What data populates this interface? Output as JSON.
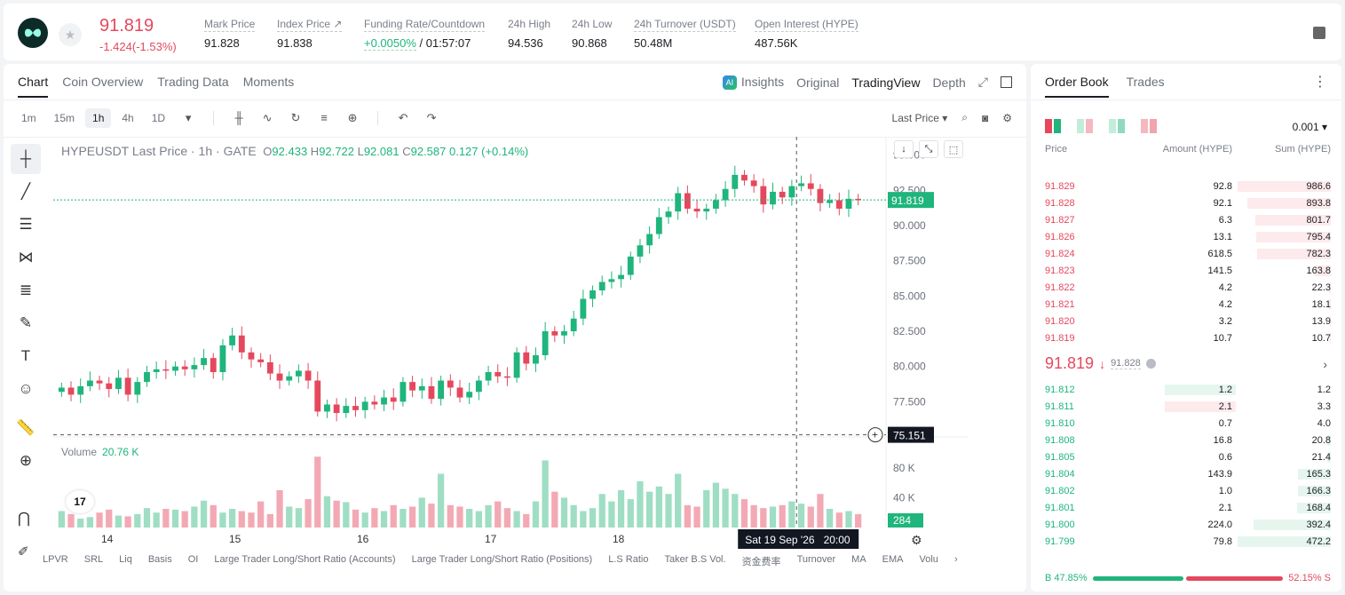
{
  "header": {
    "last_price": "91.819",
    "change": "-1.424(-1.53%)",
    "stats": [
      {
        "label": "Mark Price",
        "value": "91.828"
      },
      {
        "label": "Index Price ↗",
        "value": "91.838"
      },
      {
        "label": "Funding Rate/Countdown",
        "value_green": "+0.0050%",
        "value": " / 01:57:07"
      },
      {
        "label": "24h High",
        "value": "94.536"
      },
      {
        "label": "24h Low",
        "value": "90.868"
      },
      {
        "label": "24h Turnover (USDT)",
        "value": "50.48M"
      },
      {
        "label": "Open Interest (HYPE)",
        "value": "487.56K"
      }
    ]
  },
  "tabs": {
    "main": [
      "Chart",
      "Coin Overview",
      "Trading Data",
      "Moments"
    ],
    "insights": "Insights",
    "views": [
      "Original",
      "TradingView",
      "Depth"
    ],
    "ai_badge": "AI"
  },
  "toolbar": {
    "intervals": [
      "1m",
      "15m",
      "1h",
      "4h",
      "1D"
    ],
    "price_type": "Last Price"
  },
  "chart_info": {
    "title": "HYPEUSDT Last Price · 1h · GATE",
    "o_label": "O",
    "o": "92.433",
    "h_label": "H",
    "h": "92.722",
    "l_label": "L",
    "l": "92.081",
    "c_label": "C",
    "c": "92.587",
    "change": "0.127 (+0.14%)"
  },
  "volume_info": {
    "label": "Volume",
    "value": "20.76 K"
  },
  "tv_logo": "17",
  "chart_data": {
    "type": "candlestick",
    "symbol": "HYPEUSDT",
    "interval": "1h",
    "x_ticks": [
      "14",
      "15",
      "16",
      "17",
      "18",
      "19"
    ],
    "y_ticks": [
      "95.000",
      "92.500",
      "90.000",
      "87.500",
      "85.000",
      "82.500",
      "80.000",
      "77.500"
    ],
    "ylim": [
      75.0,
      95.8
    ],
    "volume_ticks": [
      "80 K",
      "40 K"
    ],
    "last_price_label": "91.819",
    "last_price": 91.819,
    "crosshair_price": "75.151",
    "crosshair_time": "Sat 19 Sep '26   20:00",
    "last_volume_label": "284",
    "close_path": [
      78.5,
      78.0,
      78.6,
      79.0,
      78.8,
      78.4,
      79.2,
      78.0,
      78.9,
      79.6,
      79.8,
      79.7,
      80.0,
      79.8,
      80.1,
      80.6,
      79.6,
      81.5,
      82.2,
      81.0,
      80.5,
      80.3,
      79.5,
      79.0,
      79.3,
      79.7,
      79.0,
      76.8,
      77.3,
      76.7,
      77.2,
      76.9,
      77.5,
      77.3,
      77.8,
      77.5,
      78.9,
      78.3,
      78.6,
      77.7,
      79.0,
      78.5,
      77.8,
      78.2,
      79.0,
      79.6,
      79.3,
      79.2,
      81.0,
      80.2,
      80.8,
      82.5,
      82.2,
      82.5,
      83.4,
      84.8,
      85.4,
      86.0,
      86.2,
      86.5,
      87.8,
      88.6,
      89.4,
      90.6,
      91.0,
      92.3,
      91.2,
      91.0,
      91.2,
      91.8,
      92.6,
      93.6,
      93.2,
      92.8,
      91.5,
      92.4,
      92.0,
      92.8,
      93.0,
      92.6,
      91.6,
      91.8,
      91.2,
      91.9,
      91.8
    ],
    "volume_path": [
      22,
      18,
      12,
      14,
      20,
      24,
      16,
      15,
      18,
      26,
      20,
      25,
      24,
      22,
      28,
      36,
      30,
      20,
      25,
      22,
      20,
      35,
      18,
      50,
      28,
      26,
      38,
      95,
      42,
      36,
      34,
      24,
      20,
      26,
      22,
      30,
      25,
      28,
      40,
      32,
      72,
      30,
      28,
      25,
      22,
      30,
      35,
      26,
      22,
      18,
      35,
      90,
      48,
      40,
      30,
      22,
      26,
      45,
      35,
      50,
      38,
      62,
      48,
      55,
      45,
      72,
      30,
      28,
      50,
      60,
      52,
      45,
      38,
      30,
      26,
      28,
      30,
      35,
      32,
      28,
      45,
      25,
      20,
      22,
      18
    ]
  },
  "bottom_indicators": [
    "LPVR",
    "SRL",
    "Liq",
    "Basis",
    "OI",
    "Large Trader Long/Short Ratio (Accounts)",
    "Large Trader Long/Short Ratio (Positions)",
    "L.S Ratio",
    "Taker B.S Vol.",
    "资金费率",
    "Turnover",
    "MA",
    "EMA",
    "Volu"
  ],
  "order_book": {
    "tabs": [
      "Order Book",
      "Trades"
    ],
    "precision": "0.001",
    "headers": [
      "Price",
      "Amount (HYPE)",
      "Sum (HYPE)"
    ],
    "asks": [
      {
        "price": "91.829",
        "amount": "92.8",
        "sum": "986.6",
        "depth": 1.0,
        "amount_depth": 0
      },
      {
        "price": "91.828",
        "amount": "92.1",
        "sum": "893.8",
        "depth": 0.9,
        "amount_depth": 0
      },
      {
        "price": "91.827",
        "amount": "6.3",
        "sum": "801.7",
        "depth": 0.81,
        "amount_depth": 0
      },
      {
        "price": "91.826",
        "amount": "13.1",
        "sum": "795.4",
        "depth": 0.8,
        "amount_depth": 0
      },
      {
        "price": "91.824",
        "amount": "618.5",
        "sum": "782.3",
        "depth": 0.79,
        "amount_depth": 0
      },
      {
        "price": "91.823",
        "amount": "141.5",
        "sum": "163.8",
        "depth": 0.17,
        "amount_depth": 0
      },
      {
        "price": "91.822",
        "amount": "4.2",
        "sum": "22.3",
        "depth": 0.02,
        "amount_depth": 0
      },
      {
        "price": "91.821",
        "amount": "4.2",
        "sum": "18.1",
        "depth": 0.02,
        "amount_depth": 0
      },
      {
        "price": "91.820",
        "amount": "3.2",
        "sum": "13.9",
        "depth": 0.01,
        "amount_depth": 0
      },
      {
        "price": "91.819",
        "amount": "10.7",
        "sum": "10.7",
        "depth": 0.01,
        "amount_depth": 0
      }
    ],
    "mid": {
      "price": "91.819",
      "arrow": "↓",
      "mark": "91.828",
      "more": "›"
    },
    "bids": [
      {
        "price": "91.812",
        "amount": "1.2",
        "sum": "1.2",
        "depth": 0.0,
        "amount_depth": 0.7,
        "amount_bg": "green"
      },
      {
        "price": "91.811",
        "amount": "2.1",
        "sum": "3.3",
        "depth": 0.0,
        "amount_depth": 0.7,
        "amount_bg": "red"
      },
      {
        "price": "91.810",
        "amount": "0.7",
        "sum": "4.0",
        "depth": 0.0,
        "amount_depth": 0
      },
      {
        "price": "91.808",
        "amount": "16.8",
        "sum": "20.8",
        "depth": 0.04,
        "amount_depth": 0
      },
      {
        "price": "91.805",
        "amount": "0.6",
        "sum": "21.4",
        "depth": 0.04,
        "amount_depth": 0
      },
      {
        "price": "91.804",
        "amount": "143.9",
        "sum": "165.3",
        "depth": 0.35,
        "amount_depth": 0
      },
      {
        "price": "91.802",
        "amount": "1.0",
        "sum": "166.3",
        "depth": 0.35,
        "amount_depth": 0
      },
      {
        "price": "91.801",
        "amount": "2.1",
        "sum": "168.4",
        "depth": 0.36,
        "amount_depth": 0
      },
      {
        "price": "91.800",
        "amount": "224.0",
        "sum": "392.4",
        "depth": 0.83,
        "amount_depth": 0
      },
      {
        "price": "91.799",
        "amount": "79.8",
        "sum": "472.2",
        "depth": 1.0,
        "amount_depth": 0
      }
    ],
    "ratio": {
      "buy": "B 47.85%",
      "sell": "52.15% S",
      "buy_fraction": 0.4785
    }
  },
  "colors": {
    "up": "#1fb57c",
    "down": "#e5485d",
    "up_light": "#e6f6ef",
    "down_light": "#fdeaec"
  }
}
